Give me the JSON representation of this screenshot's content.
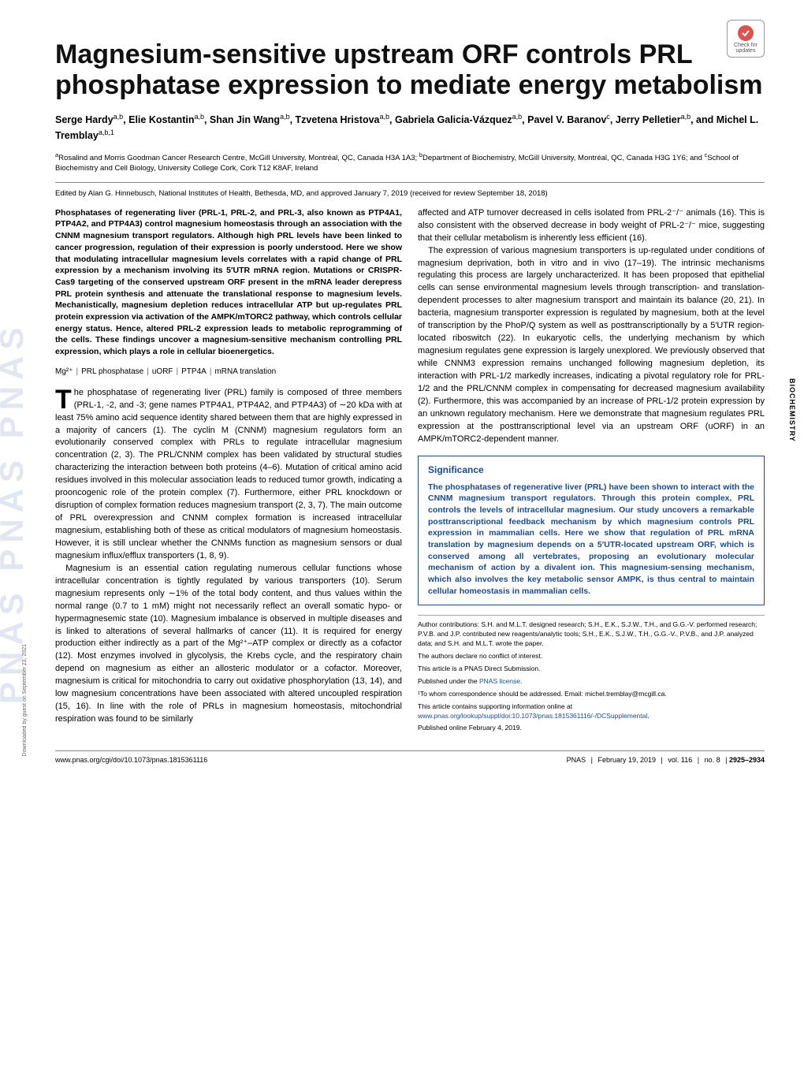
{
  "journal": {
    "watermark": "PNAS  PNAS  PNAS",
    "side_category": "BIOCHEMISTRY",
    "check_updates_label": "Check for updates"
  },
  "article": {
    "title": "Magnesium-sensitive upstream ORF controls PRL phosphatase expression to mediate energy metabolism",
    "authors_html": "Serge Hardy<sup>a,b</sup>, Elie Kostantin<sup>a,b</sup>, Shan Jin Wang<sup>a,b</sup>, Tzvetena Hristova<sup>a,b</sup>, Gabriela Galicia-Vázquez<sup>a,b</sup>, Pavel V. Baranov<sup>c</sup>, Jerry Pelletier<sup>a,b</sup>, and Michel L. Tremblay<sup>a,b,1</sup>",
    "affiliations_html": "<sup>a</sup>Rosalind and Morris Goodman Cancer Research Centre, McGill University, Montréal, QC, Canada H3A 1A3; <sup>b</sup>Department of Biochemistry, McGill University, Montréal, QC, Canada H3G 1Y6; and <sup>c</sup>School of Biochemistry and Cell Biology, University College Cork, Cork T12 K8AF, Ireland",
    "edited": "Edited by Alan G. Hinnebusch, National Institutes of Health, Bethesda, MD, and approved January 7, 2019 (received for review September 18, 2018)",
    "abstract": "Phosphatases of regenerating liver (PRL-1, PRL-2, and PRL-3, also known as PTP4A1, PTP4A2, and PTP4A3) control magnesium homeostasis through an association with the CNNM magnesium transport regulators. Although high PRL levels have been linked to cancer progression, regulation of their expression is poorly understood. Here we show that modulating intracellular magnesium levels correlates with a rapid change of PRL expression by a mechanism involving its 5′UTR mRNA region. Mutations or CRISPR-Cas9 targeting of the conserved upstream ORF present in the mRNA leader derepress PRL protein synthesis and attenuate the translational response to magnesium levels. Mechanistically, magnesium depletion reduces intracellular ATP but up-regulates PRL protein expression via activation of the AMPK/mTORC2 pathway, which controls cellular energy status. Hence, altered PRL-2 expression leads to metabolic reprogramming of the cells. These findings uncover a magnesium-sensitive mechanism controlling PRL expression, which plays a role in cellular bioenergetics.",
    "keywords": [
      "Mg²⁺",
      "PRL phosphatase",
      "uORF",
      "PTP4A",
      "mRNA translation"
    ],
    "body_col1_p1": "he phosphatase of regenerating liver (PRL) family is composed of three members (PRL-1, -2, and -3; gene names PTP4A1, PTP4A2, and PTP4A3) of ∼20 kDa with at least 75% amino acid sequence identity shared between them that are highly expressed in a majority of cancers (1). The cyclin M (CNNM) magnesium regulators form an evolutionarily conserved complex with PRLs to regulate intracellular magnesium concentration (2, 3). The PRL/CNNM complex has been validated by structural studies characterizing the interaction between both proteins (4–6). Mutation of critical amino acid residues involved in this molecular association leads to reduced tumor growth, indicating a prooncogenic role of the protein complex (7). Furthermore, either PRL knockdown or disruption of complex formation reduces magnesium transport (2, 3, 7). The main outcome of PRL overexpression and CNNM complex formation is increased intracellular magnesium, establishing both of these as critical modulators of magnesium homeostasis. However, it is still unclear whether the CNNMs function as magnesium sensors or dual magnesium influx/efflux transporters (1, 8, 9).",
    "body_col1_p2": "Magnesium is an essential cation regulating numerous cellular functions whose intracellular concentration is tightly regulated by various transporters (10). Serum magnesium represents only ∼1% of the total body content, and thus values within the normal range (0.7 to 1 mM) might not necessarily reflect an overall somatic hypo- or hypermagnesemic state (10). Magnesium imbalance is observed in multiple diseases and is linked to alterations of several hallmarks of cancer (11). It is required for energy production either indirectly as a part of the Mg²⁺–ATP complex or directly as a cofactor (12). Most enzymes involved in glycolysis, the Krebs cycle, and the respiratory chain depend on magnesium as either an allosteric modulator or a cofactor. Moreover, magnesium is critical for mitochondria to carry out oxidative phosphorylation (13, 14), and low magnesium concentrations have been associated with altered uncoupled respiration (15, 16). In line with the role of PRLs in magnesium homeostasis, mitochondrial respiration was found to be similarly",
    "body_col2_p1": "affected and ATP turnover decreased in cells isolated from PRL-2⁻/⁻ animals (16). This is also consistent with the observed decrease in body weight of PRL-2⁻/⁻ mice, suggesting that their cellular metabolism is inherently less efficient (16).",
    "body_col2_p2": "The expression of various magnesium transporters is up-regulated under conditions of magnesium deprivation, both in vitro and in vivo (17–19). The intrinsic mechanisms regulating this process are largely uncharacterized. It has been proposed that epithelial cells can sense environmental magnesium levels through transcription- and translation-dependent processes to alter magnesium transport and maintain its balance (20, 21). In bacteria, magnesium transporter expression is regulated by magnesium, both at the level of transcription by the PhoP/Q system as well as posttranscriptionally by a 5′UTR region-located riboswitch (22). In eukaryotic cells, the underlying mechanism by which magnesium regulates gene expression is largely unexplored. We previously observed that while CNNM3 expression remains unchanged following magnesium depletion, its interaction with PRL-1/2 markedly increases, indicating a pivotal regulatory role for PRL-1/2 and the PRL/CNNM complex in compensating for decreased magnesium availability (2). Furthermore, this was accompanied by an increase of PRL-1/2 protein expression by an unknown regulatory mechanism. Here we demonstrate that magnesium regulates PRL expression at the posttranscriptional level via an upstream ORF (uORF) in an AMPK/mTORC2-dependent manner.",
    "significance": {
      "heading": "Significance",
      "text": "The phosphatases of regenerative liver (PRL) have been shown to interact with the CNNM magnesium transport regulators. Through this protein complex, PRL controls the levels of intracellular magnesium. Our study uncovers a remarkable posttranscriptional feedback mechanism by which magnesium controls PRL expression in mammalian cells. Here we show that regulation of PRL mRNA translation by magnesium depends on a 5′UTR-located upstream ORF, which is conserved among all vertebrates, proposing an evolutionary molecular mechanism of action by a divalent ion. This magnesium-sensing mechanism, which also involves the key metabolic sensor AMPK, is thus central to maintain cellular homeostasis in mammalian cells."
    },
    "footnotes": {
      "contributions": "Author contributions: S.H. and M.L.T. designed research; S.H., E.K., S.J.W., T.H., and G.G.-V. performed research; P.V.B. and J.P. contributed new reagents/analytic tools; S.H., E.K., S.J.W., T.H., G.G.-V., P.V.B., and J.P. analyzed data; and S.H. and M.L.T. wrote the paper.",
      "conflict": "The authors declare no conflict of interest.",
      "direct": "This article is a PNAS Direct Submission.",
      "license_prefix": "Published under the ",
      "license_link": "PNAS license",
      "license_suffix": ".",
      "correspondence": "¹To whom correspondence should be addressed. Email: michel.tremblay@mcgill.ca.",
      "supporting_prefix": "This article contains supporting information online at ",
      "supporting_link": "www.pnas.org/lookup/suppl/doi:10.1073/pnas.1815361116/-/DCSupplemental",
      "supporting_suffix": ".",
      "published": "Published online February 4, 2019."
    }
  },
  "footer": {
    "doi": "www.pnas.org/cgi/doi/10.1073/pnas.1815361116",
    "journal": "PNAS",
    "date": "February 19, 2019",
    "volume": "vol. 116",
    "issue": "no. 8",
    "pages": "2925–2934"
  },
  "download_note": "Downloaded by guest on September 23, 2021",
  "colors": {
    "link": "#1a4b8c",
    "significance_border": "#1a4b8c",
    "watermark": "rgba(60,90,160,0.15)",
    "text": "#000000"
  }
}
